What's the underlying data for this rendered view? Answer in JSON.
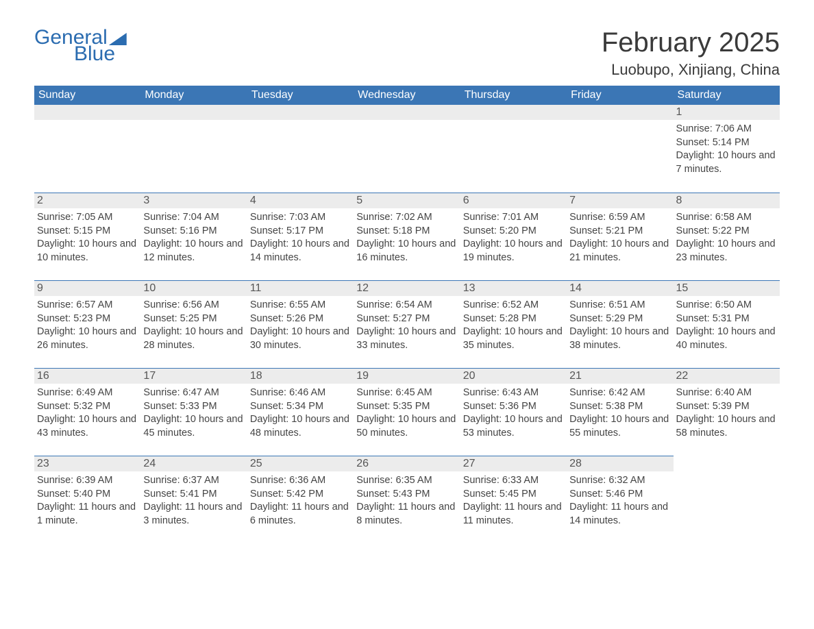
{
  "brand": {
    "general": "General",
    "blue": "Blue"
  },
  "title": "February 2025",
  "location": "Luobupo, Xinjiang, China",
  "colors": {
    "header_bg": "#3b76b5",
    "header_text": "#ffffff",
    "daynum_bg": "#ececec",
    "border": "#3b76b5",
    "body_text": "#444444",
    "title_text": "#3a3a3a",
    "logo": "#2b6cb0"
  },
  "weekdays": [
    "Sunday",
    "Monday",
    "Tuesday",
    "Wednesday",
    "Thursday",
    "Friday",
    "Saturday"
  ],
  "weeks": [
    [
      null,
      null,
      null,
      null,
      null,
      null,
      {
        "d": "1",
        "sr": "Sunrise: 7:06 AM",
        "ss": "Sunset: 5:14 PM",
        "dl": "Daylight: 10 hours and 7 minutes."
      }
    ],
    [
      {
        "d": "2",
        "sr": "Sunrise: 7:05 AM",
        "ss": "Sunset: 5:15 PM",
        "dl": "Daylight: 10 hours and 10 minutes."
      },
      {
        "d": "3",
        "sr": "Sunrise: 7:04 AM",
        "ss": "Sunset: 5:16 PM",
        "dl": "Daylight: 10 hours and 12 minutes."
      },
      {
        "d": "4",
        "sr": "Sunrise: 7:03 AM",
        "ss": "Sunset: 5:17 PM",
        "dl": "Daylight: 10 hours and 14 minutes."
      },
      {
        "d": "5",
        "sr": "Sunrise: 7:02 AM",
        "ss": "Sunset: 5:18 PM",
        "dl": "Daylight: 10 hours and 16 minutes."
      },
      {
        "d": "6",
        "sr": "Sunrise: 7:01 AM",
        "ss": "Sunset: 5:20 PM",
        "dl": "Daylight: 10 hours and 19 minutes."
      },
      {
        "d": "7",
        "sr": "Sunrise: 6:59 AM",
        "ss": "Sunset: 5:21 PM",
        "dl": "Daylight: 10 hours and 21 minutes."
      },
      {
        "d": "8",
        "sr": "Sunrise: 6:58 AM",
        "ss": "Sunset: 5:22 PM",
        "dl": "Daylight: 10 hours and 23 minutes."
      }
    ],
    [
      {
        "d": "9",
        "sr": "Sunrise: 6:57 AM",
        "ss": "Sunset: 5:23 PM",
        "dl": "Daylight: 10 hours and 26 minutes."
      },
      {
        "d": "10",
        "sr": "Sunrise: 6:56 AM",
        "ss": "Sunset: 5:25 PM",
        "dl": "Daylight: 10 hours and 28 minutes."
      },
      {
        "d": "11",
        "sr": "Sunrise: 6:55 AM",
        "ss": "Sunset: 5:26 PM",
        "dl": "Daylight: 10 hours and 30 minutes."
      },
      {
        "d": "12",
        "sr": "Sunrise: 6:54 AM",
        "ss": "Sunset: 5:27 PM",
        "dl": "Daylight: 10 hours and 33 minutes."
      },
      {
        "d": "13",
        "sr": "Sunrise: 6:52 AM",
        "ss": "Sunset: 5:28 PM",
        "dl": "Daylight: 10 hours and 35 minutes."
      },
      {
        "d": "14",
        "sr": "Sunrise: 6:51 AM",
        "ss": "Sunset: 5:29 PM",
        "dl": "Daylight: 10 hours and 38 minutes."
      },
      {
        "d": "15",
        "sr": "Sunrise: 6:50 AM",
        "ss": "Sunset: 5:31 PM",
        "dl": "Daylight: 10 hours and 40 minutes."
      }
    ],
    [
      {
        "d": "16",
        "sr": "Sunrise: 6:49 AM",
        "ss": "Sunset: 5:32 PM",
        "dl": "Daylight: 10 hours and 43 minutes."
      },
      {
        "d": "17",
        "sr": "Sunrise: 6:47 AM",
        "ss": "Sunset: 5:33 PM",
        "dl": "Daylight: 10 hours and 45 minutes."
      },
      {
        "d": "18",
        "sr": "Sunrise: 6:46 AM",
        "ss": "Sunset: 5:34 PM",
        "dl": "Daylight: 10 hours and 48 minutes."
      },
      {
        "d": "19",
        "sr": "Sunrise: 6:45 AM",
        "ss": "Sunset: 5:35 PM",
        "dl": "Daylight: 10 hours and 50 minutes."
      },
      {
        "d": "20",
        "sr": "Sunrise: 6:43 AM",
        "ss": "Sunset: 5:36 PM",
        "dl": "Daylight: 10 hours and 53 minutes."
      },
      {
        "d": "21",
        "sr": "Sunrise: 6:42 AM",
        "ss": "Sunset: 5:38 PM",
        "dl": "Daylight: 10 hours and 55 minutes."
      },
      {
        "d": "22",
        "sr": "Sunrise: 6:40 AM",
        "ss": "Sunset: 5:39 PM",
        "dl": "Daylight: 10 hours and 58 minutes."
      }
    ],
    [
      {
        "d": "23",
        "sr": "Sunrise: 6:39 AM",
        "ss": "Sunset: 5:40 PM",
        "dl": "Daylight: 11 hours and 1 minute."
      },
      {
        "d": "24",
        "sr": "Sunrise: 6:37 AM",
        "ss": "Sunset: 5:41 PM",
        "dl": "Daylight: 11 hours and 3 minutes."
      },
      {
        "d": "25",
        "sr": "Sunrise: 6:36 AM",
        "ss": "Sunset: 5:42 PM",
        "dl": "Daylight: 11 hours and 6 minutes."
      },
      {
        "d": "26",
        "sr": "Sunrise: 6:35 AM",
        "ss": "Sunset: 5:43 PM",
        "dl": "Daylight: 11 hours and 8 minutes."
      },
      {
        "d": "27",
        "sr": "Sunrise: 6:33 AM",
        "ss": "Sunset: 5:45 PM",
        "dl": "Daylight: 11 hours and 11 minutes."
      },
      {
        "d": "28",
        "sr": "Sunrise: 6:32 AM",
        "ss": "Sunset: 5:46 PM",
        "dl": "Daylight: 11 hours and 14 minutes."
      },
      null
    ]
  ]
}
